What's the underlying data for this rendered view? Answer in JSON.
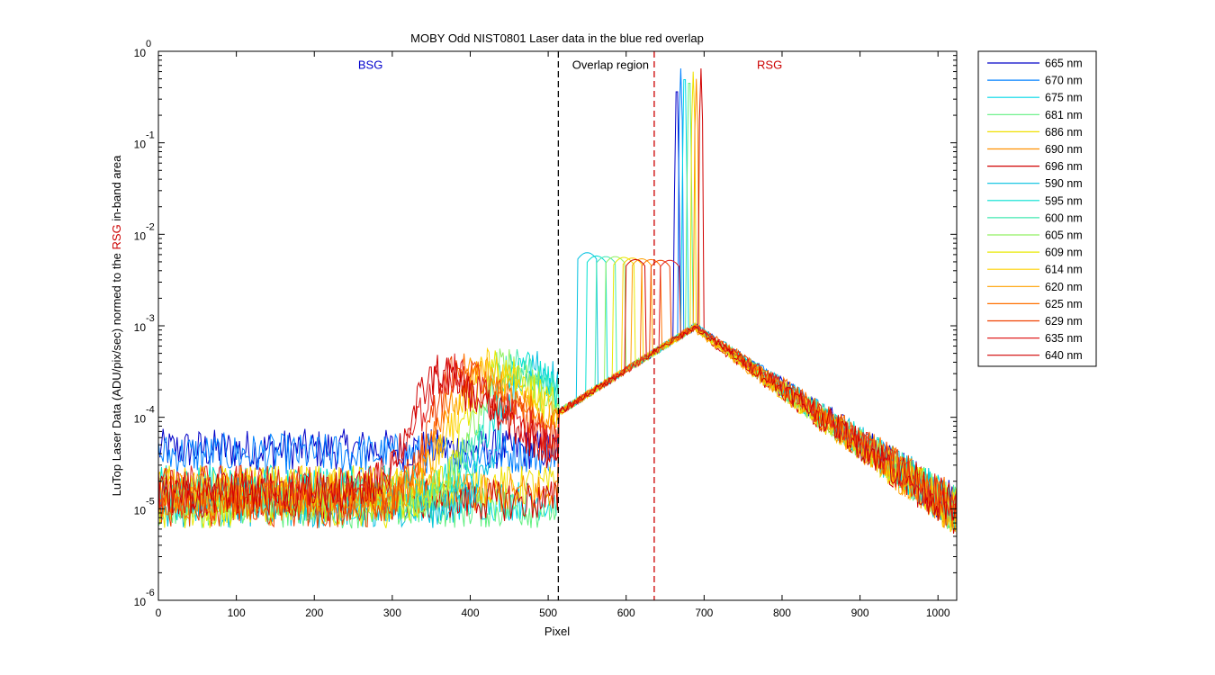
{
  "chart_data": {
    "type": "line",
    "title": "MOBY Odd NIST0801  Laser data in the blue red overlap",
    "xlabel": "Pixel",
    "ylabel_parts": [
      "LuTop Laser Data (ADU/pix/sec) normed to the ",
      "RSG",
      " in-band area"
    ],
    "yscale": "log",
    "xlim": [
      0,
      1024
    ],
    "ylim": [
      1e-06,
      1
    ],
    "xticks": [
      0,
      100,
      200,
      300,
      400,
      500,
      600,
      700,
      800,
      900,
      1000
    ],
    "yticks": [
      {
        "base": "10",
        "exp": "-6",
        "value": 1e-06
      },
      {
        "base": "10",
        "exp": "-5",
        "value": 1e-05
      },
      {
        "base": "10",
        "exp": "-4",
        "value": 0.0001
      },
      {
        "base": "10",
        "exp": "-3",
        "value": 0.001
      },
      {
        "base": "10",
        "exp": "-2",
        "value": 0.01
      },
      {
        "base": "10",
        "exp": "-1",
        "value": 0.1
      },
      {
        "base": "10",
        "exp": "0",
        "value": 1
      }
    ],
    "grid": false,
    "legend_placement": "outside-right",
    "annotations": [
      {
        "text": "BSG",
        "x": 272,
        "y": 0.7,
        "color": "#0000cc"
      },
      {
        "text": "Overlap region",
        "x": 580,
        "y": 0.7,
        "color": "#000000"
      },
      {
        "text": "RSG",
        "x": 784,
        "y": 0.7,
        "color": "#cc0000"
      }
    ],
    "vlines": [
      {
        "x": 513,
        "color": "#000000",
        "style": "dashed"
      },
      {
        "x": 636,
        "color": "#cc0000",
        "style": "dashed"
      }
    ],
    "series": [
      {
        "name": "665 nm",
        "color": "#0000c8",
        "peak_x": 665,
        "peak_y": 0.5,
        "peak_width": 1.3
      },
      {
        "name": "670 nm",
        "color": "#0080ff",
        "peak_x": 670,
        "peak_y": 0.65,
        "peak_width": 1.3
      },
      {
        "name": "675 nm",
        "color": "#00d8e8",
        "peak_x": 675,
        "peak_y": 0.68,
        "peak_width": 1.3
      },
      {
        "name": "681 nm",
        "color": "#60f080",
        "peak_x": 681,
        "peak_y": 0.62,
        "peak_width": 1.3
      },
      {
        "name": "686 nm",
        "color": "#f0e000",
        "peak_x": 686,
        "peak_y": 0.6,
        "peak_width": 1.3
      },
      {
        "name": "690 nm",
        "color": "#ff9000",
        "peak_x": 690,
        "peak_y": 0.5,
        "peak_width": 1.3
      },
      {
        "name": "696 nm",
        "color": "#d00000",
        "peak_x": 696,
        "peak_y": 0.65,
        "peak_width": 1.3
      },
      {
        "name": "590 nm",
        "color": "#00c0e0",
        "peak_x": 550,
        "peak_y": 0.0063,
        "peak_width": 5,
        "bump_x": 480,
        "bump_y": 0.00036
      },
      {
        "name": "595 nm",
        "color": "#00e0d0",
        "peak_x": 562,
        "peak_y": 0.0058,
        "peak_width": 5,
        "bump_x": 468,
        "bump_y": 0.00036
      },
      {
        "name": "600 nm",
        "color": "#40e8b0",
        "peak_x": 574,
        "peak_y": 0.0057,
        "peak_width": 5,
        "bump_x": 456,
        "bump_y": 0.00036
      },
      {
        "name": "605 nm",
        "color": "#90f060",
        "peak_x": 586,
        "peak_y": 0.0057,
        "peak_width": 5,
        "bump_x": 444,
        "bump_y": 0.00035
      },
      {
        "name": "609 nm",
        "color": "#e8e800",
        "peak_x": 597,
        "peak_y": 0.0056,
        "peak_width": 5,
        "bump_x": 434,
        "bump_y": 0.00035
      },
      {
        "name": "614 nm",
        "color": "#ffd000",
        "peak_x": 608,
        "peak_y": 0.0055,
        "peak_width": 5,
        "bump_x": 422,
        "bump_y": 0.00035
      },
      {
        "name": "620 nm",
        "color": "#ffa000",
        "peak_x": 620,
        "peak_y": 0.0054,
        "peak_width": 5,
        "bump_x": 410,
        "bump_y": 0.00034
      },
      {
        "name": "625 nm",
        "color": "#ff7000",
        "peak_x": 632,
        "peak_y": 0.0053,
        "peak_width": 5,
        "bump_x": 398,
        "bump_y": 0.00033
      },
      {
        "name": "629 nm",
        "color": "#f04000",
        "peak_x": 644,
        "peak_y": 0.0052,
        "peak_width": 5,
        "bump_x": 386,
        "bump_y": 0.00032
      },
      {
        "name": "635 nm",
        "color": "#e02020",
        "peak_x": 656,
        "peak_y": 0.0052,
        "peak_width": 5,
        "bump_x": 374,
        "bump_y": 0.00031
      },
      {
        "name": "640 nm",
        "color": "#d00000",
        "peak_x": 612,
        "peak_y": 0.0053,
        "peak_width": 5,
        "bump_x": 362,
        "bump_y": 0.0003
      }
    ]
  }
}
